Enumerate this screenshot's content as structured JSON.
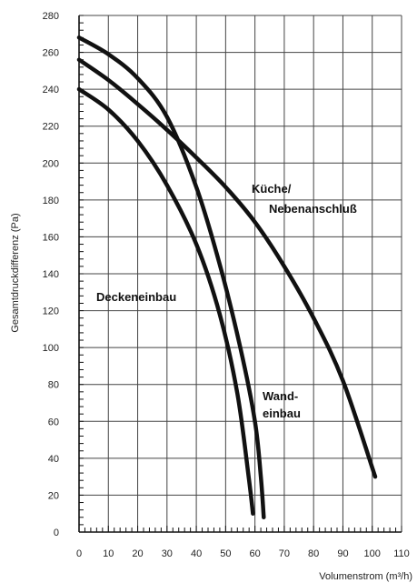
{
  "chart_data": {
    "type": "line",
    "xlabel": "Volumenstrom (m³/h)",
    "ylabel": "Gesamtdruckdifferenz (Pa)",
    "xlim": [
      0,
      110
    ],
    "ylim": [
      0,
      280
    ],
    "xticks": [
      0,
      10,
      20,
      30,
      40,
      50,
      60,
      70,
      80,
      90,
      100,
      110
    ],
    "yticks": [
      0,
      20,
      40,
      60,
      80,
      100,
      120,
      140,
      160,
      180,
      200,
      220,
      240,
      260,
      280
    ],
    "grid": true,
    "series": [
      {
        "name": "Deckeneinbau",
        "label_lines": [
          "Deckeneinbau"
        ],
        "x": [
          0,
          10,
          20,
          30,
          40,
          48,
          54,
          58,
          59.3
        ],
        "y": [
          240,
          229,
          212,
          188,
          156,
          118,
          75,
          28,
          10
        ]
      },
      {
        "name": "Wandeinbau",
        "label_lines": [
          "Wand-",
          "einbau"
        ],
        "x": [
          0,
          10,
          20,
          30,
          40,
          48,
          55,
          60,
          62,
          63
        ],
        "y": [
          268,
          259,
          246,
          225,
          187,
          145,
          100,
          60,
          30,
          8
        ]
      },
      {
        "name": "Küche/Nebenanschluß",
        "label_lines": [
          "Küche/",
          "Nebenanschluß"
        ],
        "x": [
          0,
          10,
          20,
          30,
          40,
          50,
          60,
          70,
          80,
          90,
          101
        ],
        "y": [
          256,
          245,
          232,
          218,
          203,
          187,
          168,
          144,
          116,
          82,
          30
        ]
      }
    ]
  }
}
